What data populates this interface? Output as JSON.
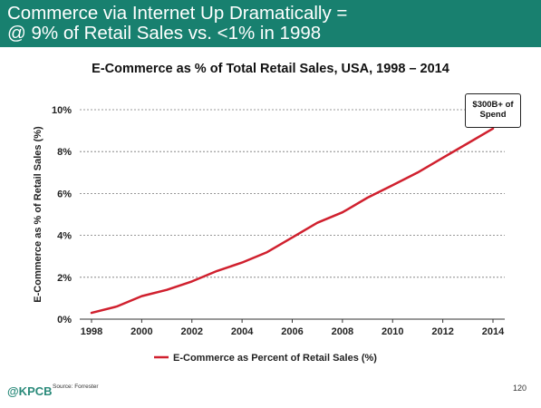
{
  "header": {
    "line1": "Commerce via Internet Up Dramatically =",
    "line2": "@ 9% of Retail Sales vs. <1% in 1998",
    "background_color": "#18806f"
  },
  "footer": {
    "logo": "@KPCB",
    "source": "Source: Forrester",
    "page_number": "120"
  },
  "chart_data": {
    "type": "line",
    "title": "E-Commerce as % of Total Retail Sales, USA, 1998 – 2014",
    "xlabel": "",
    "ylabel": "E-Commerce as % of Retail Sales (%)",
    "x": [
      1998,
      1999,
      2000,
      2001,
      2002,
      2003,
      2004,
      2005,
      2006,
      2007,
      2008,
      2009,
      2010,
      2011,
      2012,
      2013,
      2014
    ],
    "x_ticks": [
      "1998",
      "2000",
      "2002",
      "2004",
      "2006",
      "2008",
      "2010",
      "2012",
      "2014"
    ],
    "y_ticks": [
      "0%",
      "2%",
      "4%",
      "6%",
      "8%",
      "10%"
    ],
    "ylim": [
      0,
      10
    ],
    "grid": "horizontal dashed",
    "legend_position": "bottom",
    "series": [
      {
        "name": "E-Commerce as Percent of Retail Sales (%)",
        "color": "#d0202e",
        "values": [
          0.3,
          0.6,
          1.1,
          1.4,
          1.8,
          2.3,
          2.7,
          3.2,
          3.9,
          4.6,
          5.1,
          5.8,
          6.4,
          7.0,
          7.7,
          8.4,
          9.1
        ]
      }
    ],
    "annotation": "$300B+ of Spend",
    "annotation_lines": [
      "$300B+ of",
      "Spend"
    ]
  }
}
